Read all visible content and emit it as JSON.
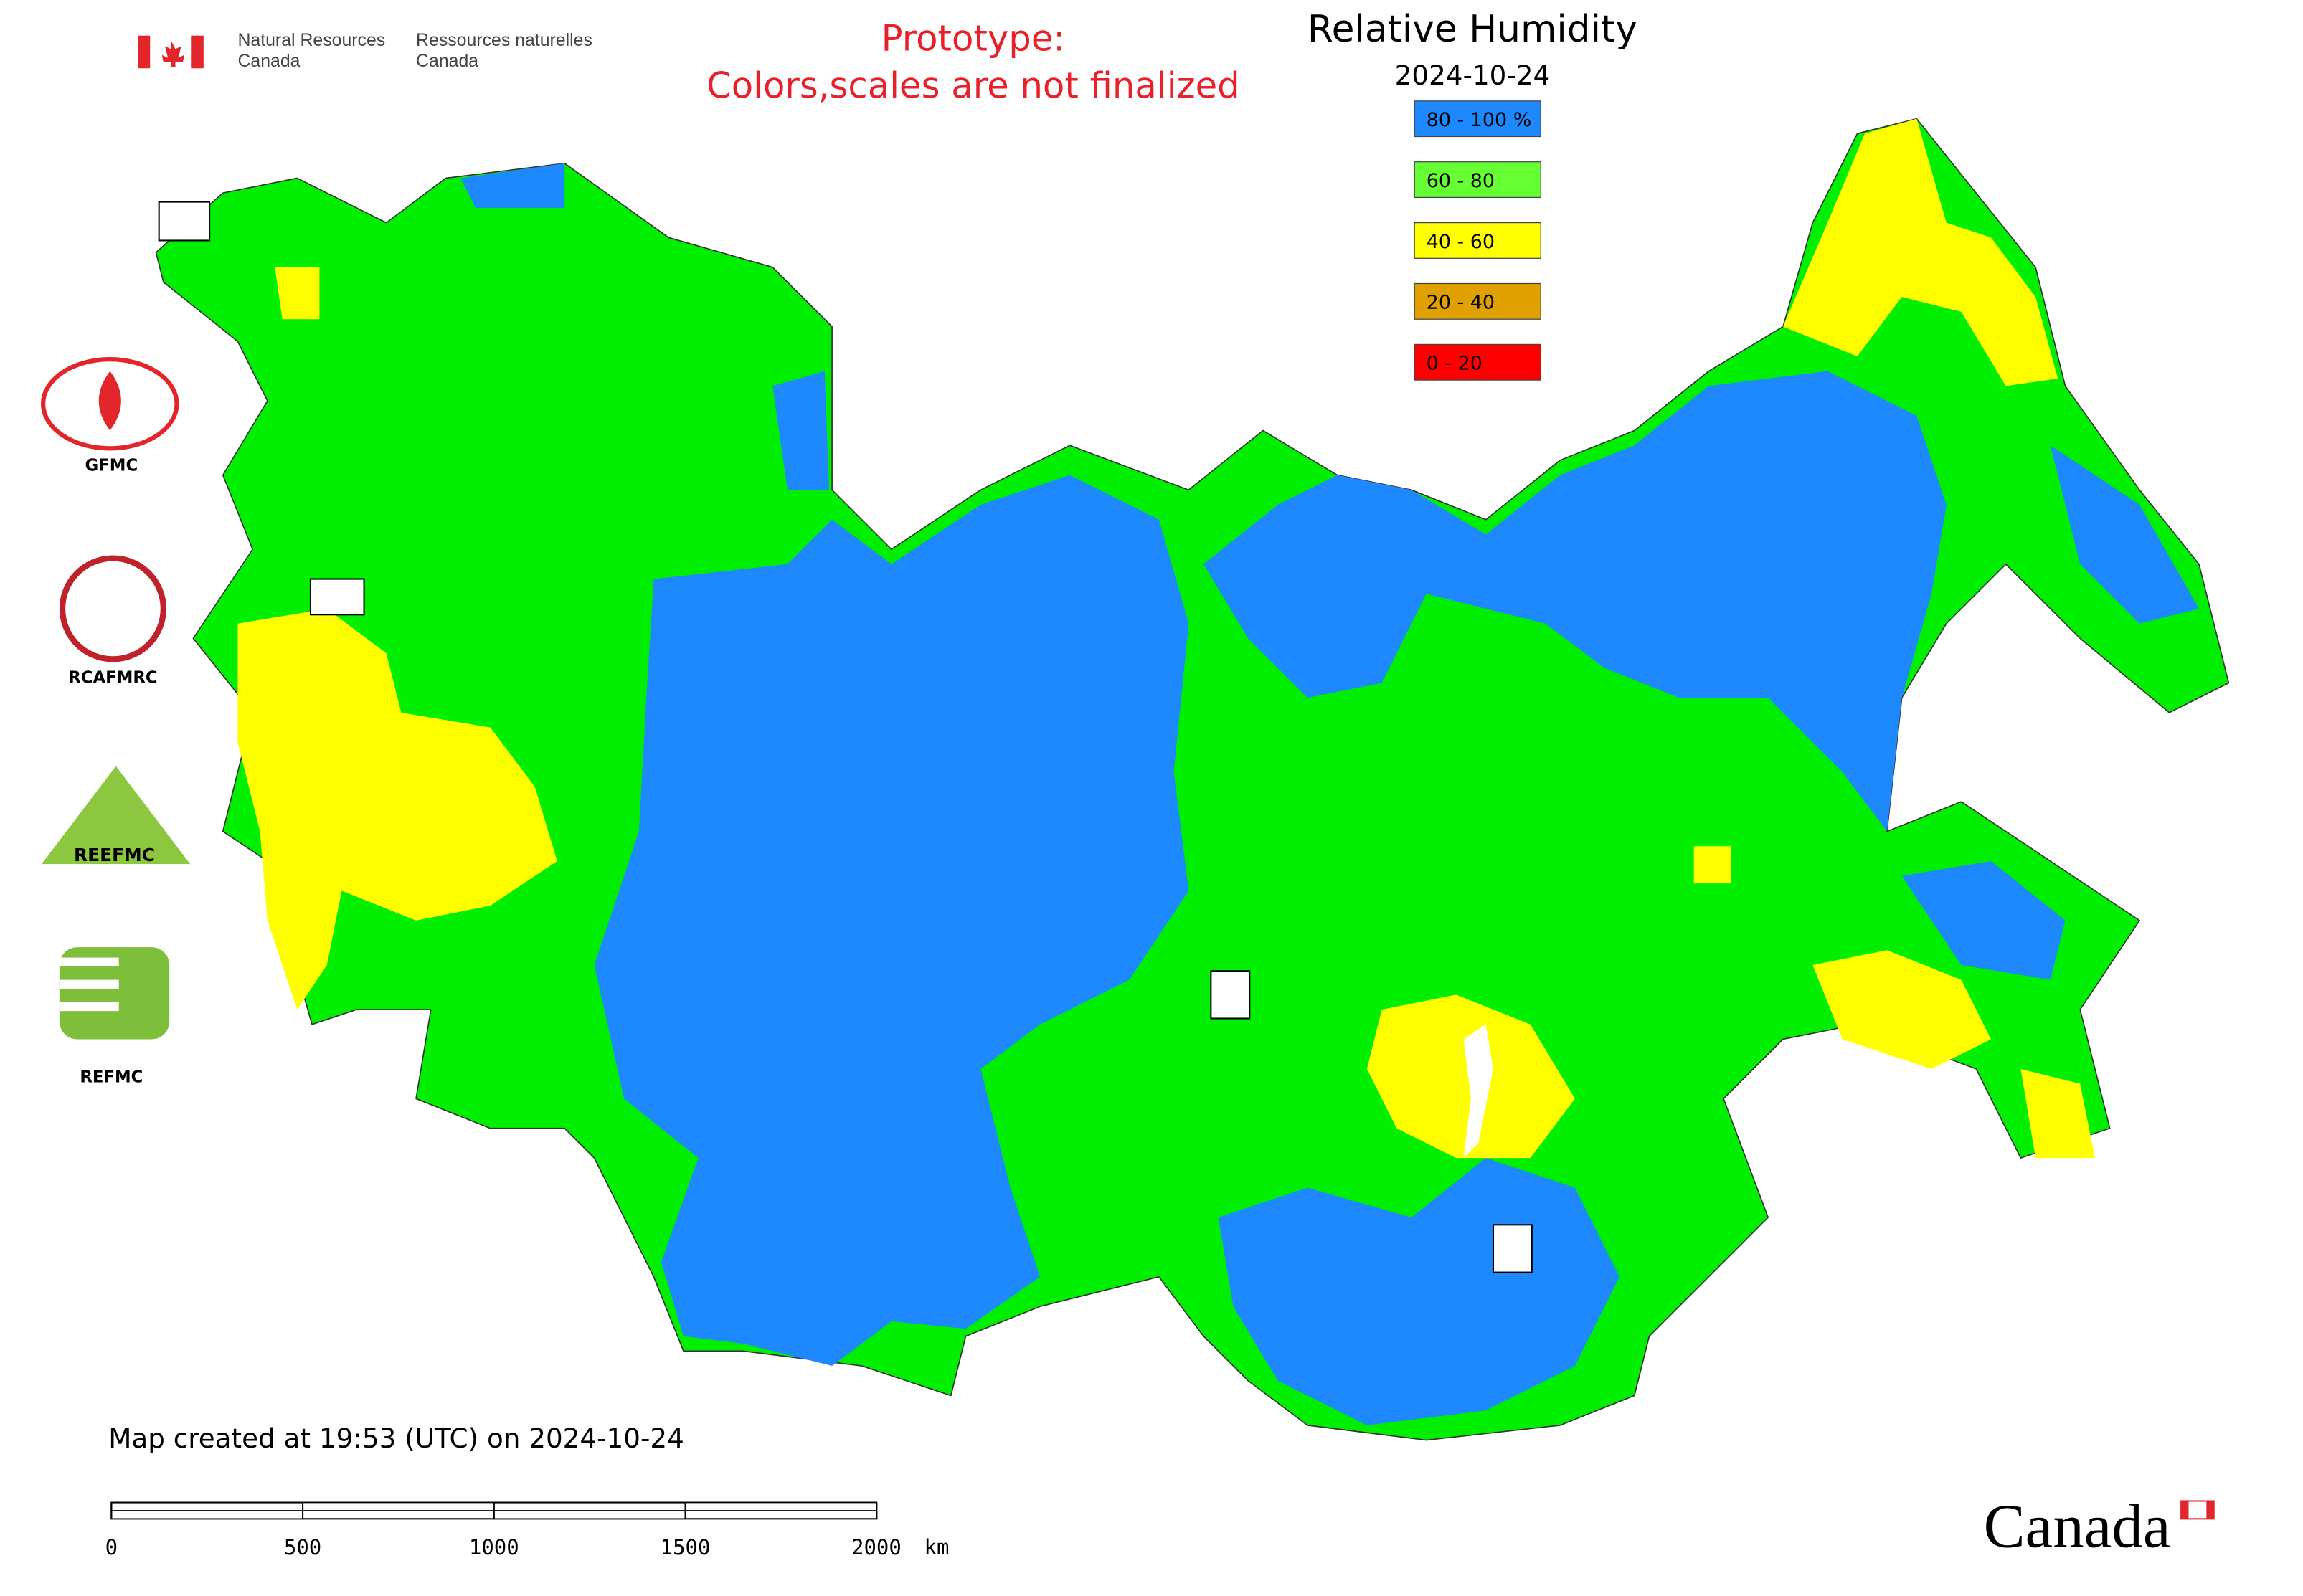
{
  "header": {
    "department_en": [
      "Natural Resources",
      "Canada"
    ],
    "department_fr": [
      "Ressources naturelles",
      "Canada"
    ],
    "notice": [
      "Prototype:",
      "Colors,scales are not finalized"
    ]
  },
  "legend": {
    "title": "Relative Humidity",
    "date": "2024-10-24",
    "items": [
      {
        "label": "80 - 100 %",
        "color": "#1e88ff"
      },
      {
        "label": "60 - 80",
        "color": "#66ff33"
      },
      {
        "label": "40 - 60",
        "color": "#ffff00"
      },
      {
        "label": "20 - 40",
        "color": "#e0a000"
      },
      {
        "label": "0 - 20",
        "color": "#ff0000"
      }
    ]
  },
  "logos": [
    {
      "label": "GFMC"
    },
    {
      "label": "RCAFMRC"
    },
    {
      "label": "REEFMC"
    },
    {
      "label": "REFMC"
    }
  ],
  "footer": {
    "created": "Map created at 19:53 (UTC) on 2024-10-24",
    "scale_bar": {
      "ticks": [
        0,
        500,
        1000,
        1500,
        2000
      ],
      "unit": "km"
    },
    "wordmark": "Canada"
  }
}
